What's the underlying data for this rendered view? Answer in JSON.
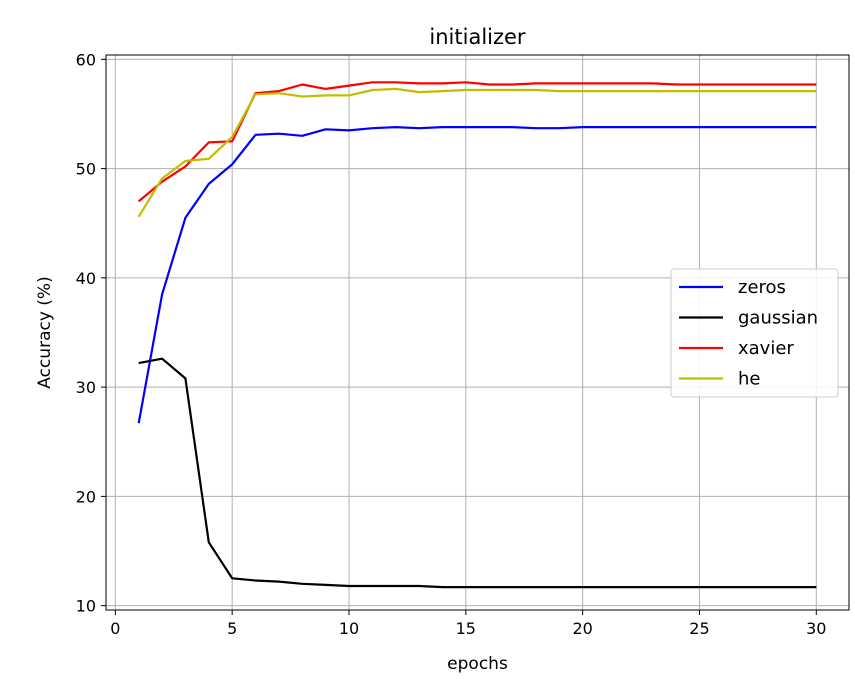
{
  "chart_data": {
    "type": "line",
    "title": "initializer",
    "xlabel": "epochs",
    "ylabel": "Accuracy (%)",
    "xlim": [
      -0.4,
      31.4
    ],
    "ylim": [
      9.6,
      60.4
    ],
    "xticks": [
      0,
      5,
      10,
      15,
      20,
      25,
      30
    ],
    "yticks": [
      10,
      20,
      30,
      40,
      50,
      60
    ],
    "grid": true,
    "legend_position": "center-right",
    "x": [
      1,
      2,
      3,
      4,
      5,
      6,
      7,
      8,
      9,
      10,
      11,
      12,
      13,
      14,
      15,
      16,
      17,
      18,
      19,
      20,
      21,
      22,
      23,
      24,
      25,
      26,
      27,
      28,
      29,
      30
    ],
    "series": [
      {
        "name": "zeros",
        "color": "#0000ff",
        "values": [
          26.7,
          38.5,
          45.5,
          48.6,
          50.4,
          53.1,
          53.2,
          53.0,
          53.6,
          53.5,
          53.7,
          53.8,
          53.7,
          53.8,
          53.8,
          53.8,
          53.8,
          53.7,
          53.7,
          53.8,
          53.8,
          53.8,
          53.8,
          53.8,
          53.8,
          53.8,
          53.8,
          53.8,
          53.8,
          53.8
        ]
      },
      {
        "name": "gaussian",
        "color": "#000000",
        "values": [
          32.2,
          32.6,
          30.8,
          15.8,
          12.5,
          12.3,
          12.2,
          12.0,
          11.9,
          11.8,
          11.8,
          11.8,
          11.8,
          11.7,
          11.7,
          11.7,
          11.7,
          11.7,
          11.7,
          11.7,
          11.7,
          11.7,
          11.7,
          11.7,
          11.7,
          11.7,
          11.7,
          11.7,
          11.7,
          11.7
        ]
      },
      {
        "name": "xavier",
        "color": "#ff0000",
        "values": [
          47.0,
          48.8,
          50.2,
          52.4,
          52.5,
          56.9,
          57.1,
          57.7,
          57.3,
          57.6,
          57.9,
          57.9,
          57.8,
          57.8,
          57.9,
          57.7,
          57.7,
          57.8,
          57.8,
          57.8,
          57.8,
          57.8,
          57.8,
          57.7,
          57.7,
          57.7,
          57.7,
          57.7,
          57.7,
          57.7
        ]
      },
      {
        "name": "he",
        "color": "#bfbf00",
        "values": [
          45.6,
          49.1,
          50.7,
          50.9,
          52.9,
          56.8,
          56.9,
          56.6,
          56.7,
          56.7,
          57.2,
          57.3,
          57.0,
          57.1,
          57.2,
          57.2,
          57.2,
          57.2,
          57.1,
          57.1,
          57.1,
          57.1,
          57.1,
          57.1,
          57.1,
          57.1,
          57.1,
          57.1,
          57.1,
          57.1
        ]
      }
    ]
  }
}
